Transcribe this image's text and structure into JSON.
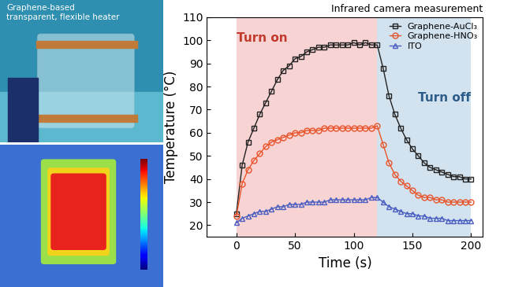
{
  "photo": {
    "caption": "Graphene-based\ntransparent, flexible heater"
  },
  "chart_data": {
    "type": "line",
    "title": "Infrared camera measurement",
    "xlabel": "Time (s)",
    "ylabel": "Temperature (°C)",
    "x": [
      0,
      5,
      10,
      15,
      20,
      25,
      30,
      35,
      40,
      45,
      50,
      55,
      60,
      65,
      70,
      75,
      80,
      85,
      90,
      95,
      100,
      105,
      110,
      115,
      120,
      125,
      130,
      135,
      140,
      145,
      150,
      155,
      160,
      165,
      170,
      175,
      180,
      185,
      190,
      195,
      200
    ],
    "series": [
      {
        "name": "Graphene-AuCl₃",
        "color": "#222222",
        "marker": "square",
        "values": [
          25,
          46,
          56,
          62,
          68,
          73,
          78,
          83,
          87,
          89,
          92,
          93,
          95,
          96,
          97,
          97,
          98,
          98,
          98,
          98,
          99,
          98,
          99,
          98,
          98,
          88,
          76,
          68,
          62,
          57,
          53,
          50,
          47,
          45,
          44,
          43,
          42,
          41,
          41,
          40,
          40
        ]
      },
      {
        "name": "Graphene-HNO₃",
        "color": "#e8542a",
        "marker": "circle",
        "values": [
          24,
          38,
          44,
          48,
          51,
          54,
          56,
          57,
          58,
          59,
          60,
          60,
          61,
          61,
          61,
          62,
          62,
          62,
          62,
          62,
          62,
          62,
          62,
          62,
          63,
          55,
          47,
          42,
          39,
          37,
          35,
          33,
          32,
          32,
          31,
          31,
          30,
          30,
          30,
          30,
          30
        ]
      },
      {
        "name": "ITO",
        "color": "#4a5fc1",
        "marker": "triangle",
        "values": [
          21,
          23,
          24,
          25,
          26,
          26,
          27,
          28,
          28,
          29,
          29,
          29,
          30,
          30,
          30,
          30,
          31,
          31,
          31,
          31,
          31,
          31,
          31,
          32,
          32,
          30,
          28,
          27,
          26,
          25,
          25,
          24,
          24,
          23,
          23,
          23,
          22,
          22,
          22,
          22,
          22
        ]
      }
    ],
    "shaded_regions": [
      {
        "from": 0,
        "to": 120,
        "color": "#f8d3d3",
        "label": "Turn on"
      },
      {
        "from": 120,
        "to": 200,
        "color": "#d3e2ef",
        "label": "Turn off"
      }
    ],
    "xlim": [
      -25,
      210
    ],
    "ylim": [
      15,
      110
    ],
    "xticks": [
      0,
      50,
      100,
      150,
      200
    ],
    "yticks": [
      20,
      30,
      40,
      50,
      60,
      70,
      80,
      90,
      100,
      110
    ],
    "legend": "upper right"
  }
}
